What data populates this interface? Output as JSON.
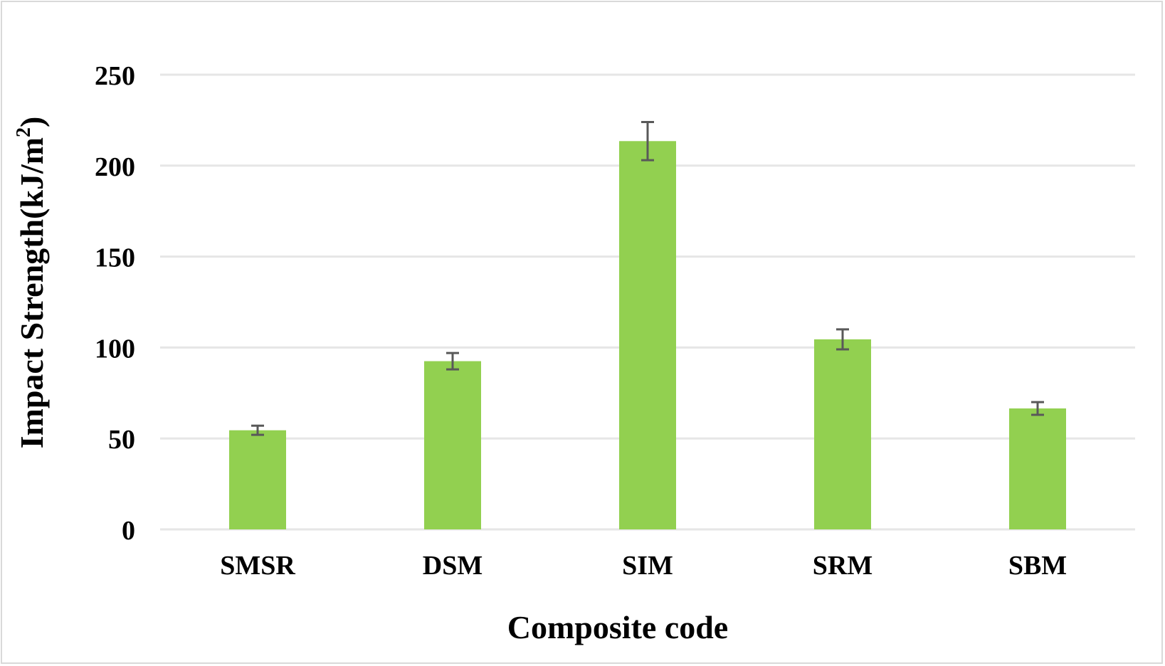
{
  "chart_data": {
    "type": "bar",
    "title": "",
    "xlabel": "Composite code",
    "ylabel_main": "Impact Strength(kJ/m",
    "ylabel_sup": "2",
    "ylabel_close": ")",
    "categories": [
      "SMSR",
      "DSM",
      "SIM",
      "SRM",
      "SBM"
    ],
    "values": [
      54.5,
      92.5,
      213.5,
      104.5,
      66.5
    ],
    "errors": [
      2.5,
      4.5,
      10.5,
      5.5,
      3.5
    ],
    "ylim": [
      0,
      250
    ],
    "yticks": [
      0,
      50,
      100,
      150,
      200,
      250
    ],
    "ytick_labels": [
      "0",
      "50",
      "100",
      "150",
      "200",
      "250"
    ],
    "grid": true,
    "legend": "none",
    "colors": {
      "bar": "#92d050",
      "error_bar": "#595959",
      "grid": "#e6e6e6",
      "border": "#d9d9d9"
    }
  }
}
